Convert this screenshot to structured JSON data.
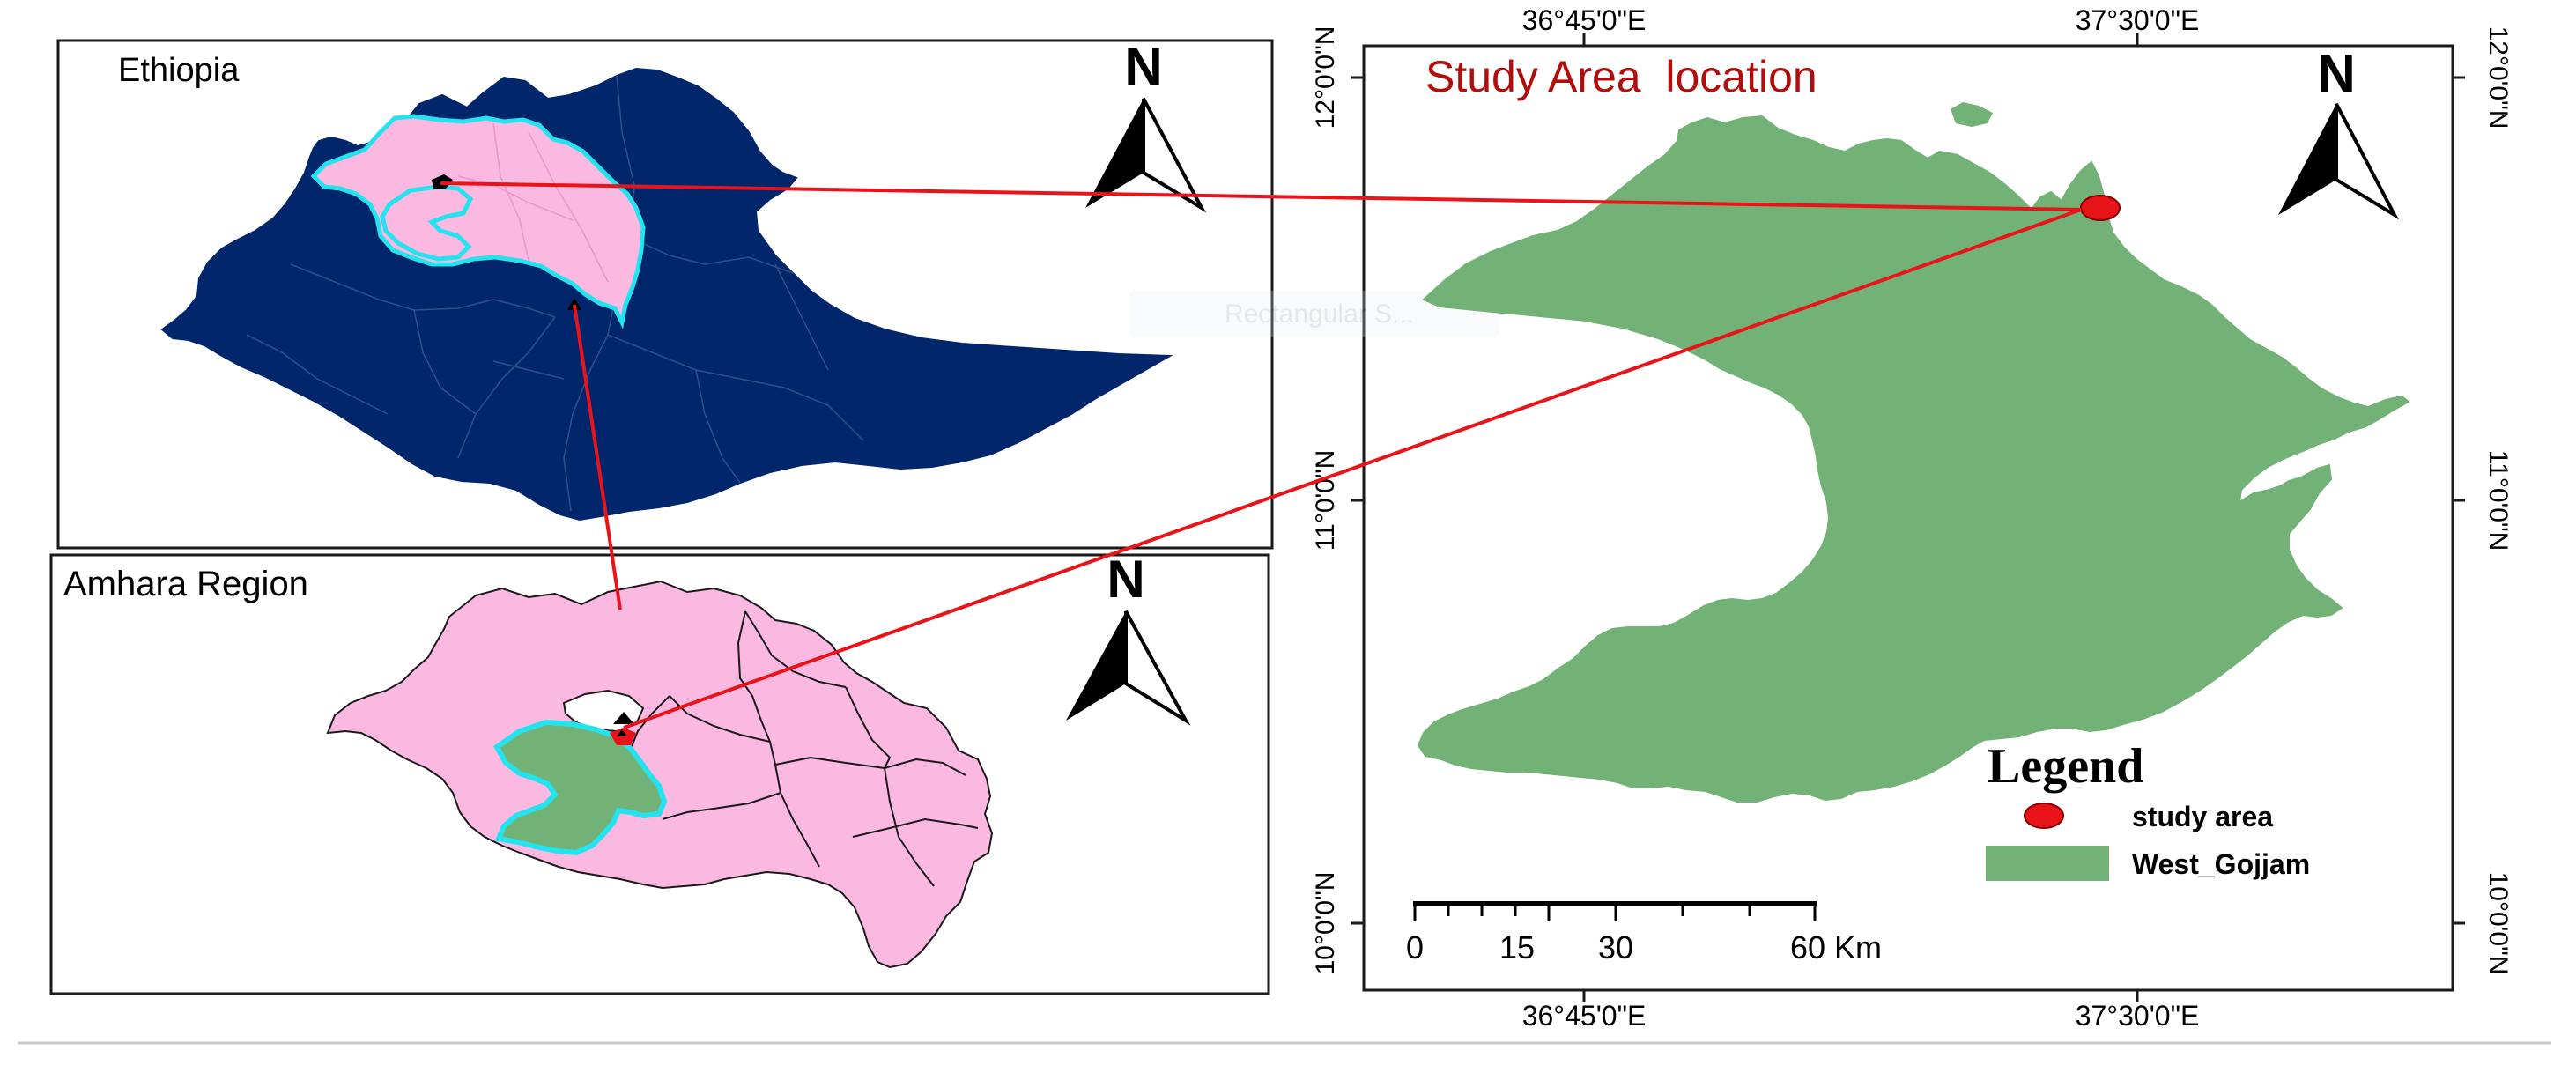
{
  "colors": {
    "ethiopia_fill": "#02266b",
    "amhara_fill": "#fbb8e0",
    "west_gojjam_fill": "#73b276",
    "west_gojjam_outline": "#22e3ee",
    "study_area_marker": "#e8141a",
    "connector_line": "#e8141a",
    "title_color": "#b10d0d",
    "frame": "#000000"
  },
  "ethiopia_panel": {
    "label": "Ethiopia",
    "north_arrow_label": "N"
  },
  "amhara_panel": {
    "label": "Amhara Region",
    "north_arrow_label": "N"
  },
  "study_area_panel": {
    "title": "Study Area  location",
    "north_arrow_label": "N",
    "longitude_ticks": [
      "36°45'0\"E",
      "37°30'0\"E"
    ],
    "latitude_ticks": [
      "12°0'0\"N",
      "11°0'0\"N",
      "10°0'0\"N"
    ],
    "legend": {
      "title": "Legend",
      "items": [
        {
          "label": "study area",
          "symbol": "red-dot"
        },
        {
          "label": "West_Gojjam",
          "symbol": "green-patch"
        }
      ]
    },
    "scale_bar": {
      "labels": [
        "0",
        "15",
        "30",
        "60 Km"
      ]
    }
  },
  "watermark": {
    "text": "Rectangular S..."
  }
}
